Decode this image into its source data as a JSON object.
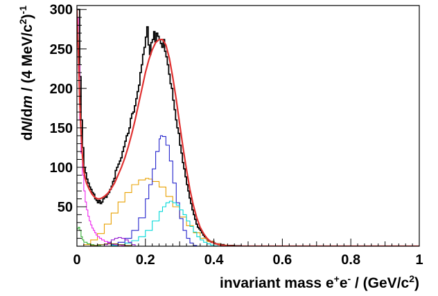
{
  "chart_data": {
    "type": "line",
    "title": "",
    "xlabel": "invariant mass e+e- / (GeV/c2)",
    "ylabel": "dN/dm / (4 MeV/c2)-1",
    "xlim": [
      0,
      1
    ],
    "ylim": [
      0,
      305
    ],
    "grid": false,
    "legend": "none",
    "x_ticks": [
      "0",
      "0.2",
      "0.4",
      "0.6",
      "0.8",
      "1"
    ],
    "y_ticks": [
      "50",
      "100",
      "150",
      "200",
      "250",
      "300"
    ],
    "series": [
      {
        "color": "#000000",
        "style": "step",
        "width": 1.8,
        "points": [
          [
            0.0,
            300
          ],
          [
            0.004,
            300
          ],
          [
            0.008,
            215
          ],
          [
            0.012,
            160
          ],
          [
            0.016,
            125
          ],
          [
            0.02,
            100
          ],
          [
            0.024,
            93
          ],
          [
            0.028,
            85
          ],
          [
            0.032,
            80
          ],
          [
            0.036,
            75
          ],
          [
            0.04,
            72
          ],
          [
            0.044,
            68
          ],
          [
            0.048,
            66
          ],
          [
            0.052,
            60
          ],
          [
            0.056,
            58
          ],
          [
            0.06,
            55
          ],
          [
            0.064,
            58
          ],
          [
            0.068,
            54
          ],
          [
            0.072,
            56
          ],
          [
            0.076,
            60
          ],
          [
            0.08,
            63
          ],
          [
            0.084,
            62
          ],
          [
            0.088,
            66
          ],
          [
            0.092,
            68
          ],
          [
            0.096,
            72
          ],
          [
            0.1,
            76
          ],
          [
            0.104,
            82
          ],
          [
            0.108,
            86
          ],
          [
            0.112,
            96
          ],
          [
            0.116,
            100
          ],
          [
            0.12,
            104
          ],
          [
            0.124,
            108
          ],
          [
            0.128,
            112
          ],
          [
            0.132,
            120
          ],
          [
            0.136,
            126
          ],
          [
            0.14,
            133
          ],
          [
            0.144,
            140
          ],
          [
            0.148,
            143
          ],
          [
            0.152,
            150
          ],
          [
            0.156,
            162
          ],
          [
            0.16,
            168
          ],
          [
            0.164,
            170
          ],
          [
            0.168,
            178
          ],
          [
            0.172,
            187
          ],
          [
            0.176,
            196
          ],
          [
            0.18,
            204
          ],
          [
            0.184,
            220
          ],
          [
            0.188,
            230
          ],
          [
            0.192,
            243
          ],
          [
            0.196,
            252
          ],
          [
            0.2,
            265
          ],
          [
            0.204,
            278
          ],
          [
            0.208,
            255
          ],
          [
            0.212,
            243
          ],
          [
            0.216,
            258
          ],
          [
            0.22,
            262
          ],
          [
            0.224,
            272
          ],
          [
            0.228,
            259
          ],
          [
            0.232,
            270
          ],
          [
            0.236,
            266
          ],
          [
            0.24,
            262
          ],
          [
            0.244,
            257
          ],
          [
            0.248,
            252
          ],
          [
            0.252,
            262
          ],
          [
            0.256,
            247
          ],
          [
            0.26,
            240
          ],
          [
            0.264,
            230
          ],
          [
            0.268,
            218
          ],
          [
            0.272,
            206
          ],
          [
            0.276,
            200
          ],
          [
            0.28,
            185
          ],
          [
            0.284,
            173
          ],
          [
            0.288,
            160
          ],
          [
            0.292,
            150
          ],
          [
            0.296,
            143
          ],
          [
            0.3,
            128
          ],
          [
            0.304,
            118
          ],
          [
            0.308,
            106
          ],
          [
            0.312,
            98
          ],
          [
            0.316,
            88
          ],
          [
            0.32,
            78
          ],
          [
            0.324,
            70
          ],
          [
            0.328,
            61
          ],
          [
            0.332,
            54
          ],
          [
            0.336,
            46
          ],
          [
            0.34,
            40
          ],
          [
            0.344,
            34
          ],
          [
            0.348,
            28
          ],
          [
            0.352,
            24
          ],
          [
            0.356,
            22
          ],
          [
            0.36,
            20
          ],
          [
            0.364,
            17
          ],
          [
            0.368,
            14
          ],
          [
            0.372,
            12
          ],
          [
            0.376,
            10
          ],
          [
            0.38,
            8
          ],
          [
            0.384,
            7
          ],
          [
            0.388,
            6
          ],
          [
            0.392,
            5
          ],
          [
            0.396,
            6
          ],
          [
            0.4,
            4
          ],
          [
            0.404,
            3
          ],
          [
            0.408,
            3
          ],
          [
            0.412,
            2
          ],
          [
            0.416,
            3
          ],
          [
            0.42,
            2
          ],
          [
            0.43,
            1
          ],
          [
            0.44,
            1
          ],
          [
            0.46,
            0.5
          ],
          [
            0.48,
            0
          ],
          [
            1.0,
            0
          ]
        ]
      },
      {
        "color": "#e8a000",
        "style": "step",
        "width": 1.1,
        "points": [
          [
            0.0,
            0
          ],
          [
            0.02,
            2
          ],
          [
            0.04,
            8
          ],
          [
            0.06,
            16
          ],
          [
            0.08,
            28
          ],
          [
            0.1,
            42
          ],
          [
            0.12,
            56
          ],
          [
            0.14,
            68
          ],
          [
            0.16,
            78
          ],
          [
            0.18,
            84
          ],
          [
            0.2,
            86
          ],
          [
            0.21,
            85
          ],
          [
            0.22,
            82
          ],
          [
            0.24,
            75
          ],
          [
            0.26,
            63
          ],
          [
            0.28,
            50
          ],
          [
            0.3,
            37
          ],
          [
            0.32,
            26
          ],
          [
            0.34,
            17
          ],
          [
            0.36,
            10
          ],
          [
            0.38,
            6
          ],
          [
            0.4,
            3
          ],
          [
            0.42,
            1.5
          ],
          [
            0.44,
            0.6
          ],
          [
            0.46,
            0
          ],
          [
            1.0,
            0
          ]
        ]
      },
      {
        "color": "#2222cc",
        "style": "step",
        "width": 1.1,
        "points": [
          [
            0.0,
            0
          ],
          [
            0.08,
            0
          ],
          [
            0.1,
            2
          ],
          [
            0.12,
            5
          ],
          [
            0.14,
            10
          ],
          [
            0.16,
            20
          ],
          [
            0.18,
            36
          ],
          [
            0.2,
            60
          ],
          [
            0.21,
            78
          ],
          [
            0.22,
            98
          ],
          [
            0.23,
            120
          ],
          [
            0.24,
            136
          ],
          [
            0.244,
            140
          ],
          [
            0.25,
            139
          ],
          [
            0.26,
            128
          ],
          [
            0.27,
            108
          ],
          [
            0.28,
            80
          ],
          [
            0.29,
            55
          ],
          [
            0.3,
            35
          ],
          [
            0.31,
            20
          ],
          [
            0.32,
            10
          ],
          [
            0.33,
            4
          ],
          [
            0.34,
            1
          ],
          [
            0.35,
            0
          ],
          [
            1.0,
            0
          ]
        ]
      },
      {
        "color": "#00d8d8",
        "style": "step",
        "width": 1.1,
        "points": [
          [
            0.0,
            0
          ],
          [
            0.08,
            0
          ],
          [
            0.1,
            1
          ],
          [
            0.12,
            2
          ],
          [
            0.14,
            4
          ],
          [
            0.16,
            7
          ],
          [
            0.18,
            12
          ],
          [
            0.2,
            20
          ],
          [
            0.22,
            32
          ],
          [
            0.24,
            44
          ],
          [
            0.25,
            50
          ],
          [
            0.26,
            55
          ],
          [
            0.27,
            57
          ],
          [
            0.28,
            55
          ],
          [
            0.29,
            52
          ],
          [
            0.3,
            46
          ],
          [
            0.31,
            40
          ],
          [
            0.32,
            32
          ],
          [
            0.33,
            25
          ],
          [
            0.34,
            18
          ],
          [
            0.35,
            12
          ],
          [
            0.36,
            8
          ],
          [
            0.37,
            5
          ],
          [
            0.38,
            3
          ],
          [
            0.39,
            1.5
          ],
          [
            0.4,
            0.5
          ],
          [
            0.41,
            0
          ],
          [
            1.0,
            0
          ]
        ]
      },
      {
        "color": "#ee22ee",
        "style": "step",
        "width": 1.1,
        "points": [
          [
            0.0,
            290
          ],
          [
            0.004,
            230
          ],
          [
            0.008,
            160
          ],
          [
            0.012,
            118
          ],
          [
            0.016,
            90
          ],
          [
            0.02,
            70
          ],
          [
            0.024,
            56
          ],
          [
            0.028,
            46
          ],
          [
            0.032,
            38
          ],
          [
            0.036,
            32
          ],
          [
            0.04,
            27
          ],
          [
            0.044,
            23
          ],
          [
            0.048,
            20
          ],
          [
            0.052,
            17
          ],
          [
            0.056,
            14
          ],
          [
            0.06,
            12
          ],
          [
            0.066,
            10
          ],
          [
            0.072,
            8
          ],
          [
            0.08,
            6
          ],
          [
            0.09,
            4
          ],
          [
            0.1,
            3
          ],
          [
            0.11,
            2
          ],
          [
            0.12,
            1.5
          ],
          [
            0.13,
            1
          ],
          [
            0.14,
            0.5
          ],
          [
            0.15,
            0
          ],
          [
            1.0,
            0
          ]
        ]
      },
      {
        "color": "#8800cc",
        "style": "step",
        "width": 1.0,
        "points": [
          [
            0.0,
            0
          ],
          [
            0.05,
            0
          ],
          [
            0.08,
            2
          ],
          [
            0.09,
            5
          ],
          [
            0.1,
            8
          ],
          [
            0.11,
            10
          ],
          [
            0.12,
            11
          ],
          [
            0.13,
            10
          ],
          [
            0.14,
            8
          ],
          [
            0.15,
            5
          ],
          [
            0.16,
            2
          ],
          [
            0.17,
            0
          ],
          [
            1.0,
            0
          ]
        ]
      },
      {
        "color": "#22aa22",
        "style": "step",
        "width": 1.0,
        "points": [
          [
            0.0,
            22
          ],
          [
            0.004,
            24
          ],
          [
            0.008,
            20
          ],
          [
            0.012,
            12
          ],
          [
            0.016,
            8
          ],
          [
            0.02,
            5
          ],
          [
            0.03,
            3
          ],
          [
            0.04,
            2
          ],
          [
            0.05,
            1
          ],
          [
            0.07,
            0
          ],
          [
            1.0,
            0
          ]
        ]
      },
      {
        "color": "#7a5a00",
        "style": "step",
        "width": 1.0,
        "points": [
          [
            0.0,
            0
          ],
          [
            0.03,
            0
          ],
          [
            0.04,
            1
          ],
          [
            0.06,
            2
          ],
          [
            0.08,
            3
          ],
          [
            0.1,
            3
          ],
          [
            0.12,
            2
          ],
          [
            0.14,
            1
          ],
          [
            0.16,
            0
          ],
          [
            1.0,
            0
          ]
        ]
      },
      {
        "color": "#e03030",
        "style": "line",
        "width": 2.2,
        "points": [
          [
            0.0,
            300
          ],
          [
            0.004,
            248
          ],
          [
            0.008,
            185
          ],
          [
            0.012,
            145
          ],
          [
            0.016,
            115
          ],
          [
            0.02,
            95
          ],
          [
            0.024,
            86
          ],
          [
            0.028,
            80
          ],
          [
            0.032,
            76
          ],
          [
            0.036,
            72
          ],
          [
            0.04,
            69
          ],
          [
            0.044,
            66
          ],
          [
            0.048,
            64
          ],
          [
            0.052,
            62
          ],
          [
            0.056,
            61
          ],
          [
            0.06,
            60
          ],
          [
            0.066,
            60
          ],
          [
            0.072,
            61
          ],
          [
            0.08,
            63
          ],
          [
            0.09,
            67
          ],
          [
            0.1,
            73
          ],
          [
            0.11,
            80
          ],
          [
            0.12,
            90
          ],
          [
            0.13,
            100
          ],
          [
            0.14,
            112
          ],
          [
            0.15,
            126
          ],
          [
            0.16,
            142
          ],
          [
            0.17,
            160
          ],
          [
            0.18,
            180
          ],
          [
            0.19,
            200
          ],
          [
            0.2,
            220
          ],
          [
            0.21,
            236
          ],
          [
            0.22,
            249
          ],
          [
            0.23,
            258
          ],
          [
            0.24,
            262
          ],
          [
            0.25,
            262
          ],
          [
            0.26,
            255
          ],
          [
            0.27,
            238
          ],
          [
            0.28,
            214
          ],
          [
            0.29,
            186
          ],
          [
            0.3,
            155
          ],
          [
            0.31,
            125
          ],
          [
            0.32,
            97
          ],
          [
            0.33,
            72
          ],
          [
            0.34,
            52
          ],
          [
            0.35,
            36
          ],
          [
            0.36,
            24
          ],
          [
            0.37,
            16
          ],
          [
            0.38,
            10
          ],
          [
            0.39,
            6
          ],
          [
            0.4,
            4
          ],
          [
            0.41,
            2.5
          ],
          [
            0.42,
            1.5
          ],
          [
            0.43,
            1
          ],
          [
            0.44,
            0.5
          ],
          [
            0.46,
            0
          ],
          [
            1.0,
            0
          ]
        ]
      }
    ]
  }
}
